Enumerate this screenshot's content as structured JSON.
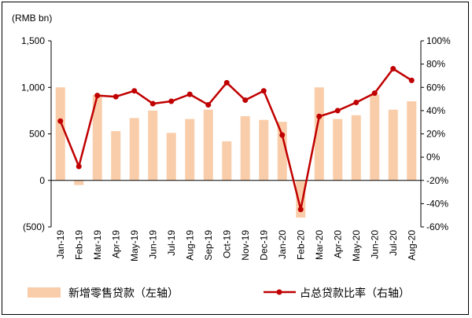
{
  "chart_data": {
    "type": "bar",
    "unit_label": "(RMB bn)",
    "categories": [
      "Jan-19",
      "Feb-19",
      "Mar-19",
      "Apr-19",
      "May-19",
      "Jun-19",
      "Jul-19",
      "Aug-19",
      "Sep-19",
      "Oct-19",
      "Nov-19",
      "Dec-19",
      "Jan-20",
      "Feb-20",
      "Mar-20",
      "Apr-20",
      "May-20",
      "Jun-20",
      "Jul-20",
      "Aug-20"
    ],
    "series": [
      {
        "name": "新增零售贷款（左轴）",
        "type": "bar",
        "axis": "left",
        "color": "#f9cda9",
        "values": [
          1000,
          -50,
          920,
          530,
          670,
          750,
          510,
          660,
          760,
          420,
          690,
          650,
          630,
          -400,
          1000,
          660,
          700,
          920,
          760,
          850
        ]
      },
      {
        "name": "占总贷款比率（右轴）",
        "type": "line",
        "axis": "right",
        "color": "#c00000",
        "values": [
          0.31,
          -0.08,
          0.53,
          0.52,
          0.57,
          0.46,
          0.48,
          0.54,
          0.45,
          0.64,
          0.49,
          0.57,
          0.19,
          -0.45,
          0.35,
          0.4,
          0.47,
          0.55,
          0.76,
          0.66
        ]
      }
    ],
    "y_left": {
      "ylim": [
        -500,
        1500
      ],
      "ticks": [
        -500,
        0,
        500,
        1000,
        1500
      ],
      "tick_labels": [
        "(500)",
        "0",
        "500",
        "1,000",
        "1,500"
      ]
    },
    "y_right": {
      "ylim": [
        -0.6,
        1.0
      ],
      "ticks": [
        -0.6,
        -0.4,
        -0.2,
        0,
        0.2,
        0.4,
        0.6,
        0.8,
        1.0
      ],
      "tick_labels": [
        "-60%",
        "-40%",
        "-20%",
        "0%",
        "20%",
        "40%",
        "60%",
        "80%",
        "100%"
      ]
    },
    "grid": false,
    "legend_position": "bottom"
  }
}
